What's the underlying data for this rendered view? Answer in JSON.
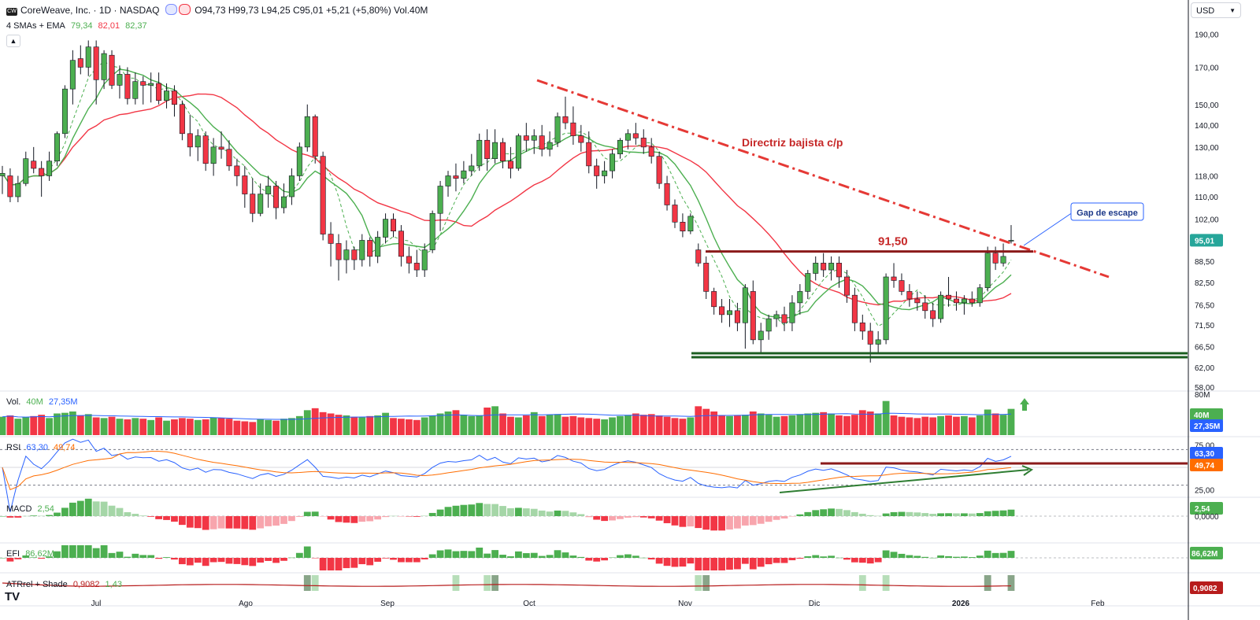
{
  "header": {
    "symbol": "CoreWeave, Inc. · 1D · NASDAQ",
    "logo_text": "CW",
    "ohlc": "O94,73 H99,73 L94,25 C95,01 +5,21 (+5,80%) Vol.40M",
    "ma_legend_label": "4 SMAs + EMA",
    "ma_values": [
      "79,34",
      "82,01",
      "82,37"
    ],
    "collapse_icon": "chevron-up-icon",
    "colors": {
      "up": "#26a69a",
      "green": "#4caf50",
      "red": "#f23645"
    }
  },
  "currency": {
    "label": "USD",
    "icon": "chevron-down-icon"
  },
  "annotations": {
    "trendline_label": "Directriz bajista c/p",
    "resistance_label": "91,50",
    "gap_label": "Gap de escape"
  },
  "volume_legend": {
    "name": "Vol.",
    "v1": "40M",
    "v2": "27,35M"
  },
  "rsi_legend": {
    "name": "RSI",
    "v1": "63,30",
    "v2": "49,74"
  },
  "macd_legend": {
    "name": "MACD",
    "v1": "2,54"
  },
  "efi_legend": {
    "name": "EFI",
    "v1": "86,62M"
  },
  "atr_legend": {
    "name": "ATRrel + Shade",
    "v1": "0,9082",
    "v2": "1,43"
  },
  "chart_data": {
    "type": "candlestick",
    "title": "CoreWeave, Inc. · 1D · NASDAQ",
    "x_tick_labels": [
      "Jul",
      "Ago",
      "Sep",
      "Oct",
      "Nov",
      "Dic",
      "2026",
      "Feb"
    ],
    "y_tick_labels": [
      "190,00",
      "170,00",
      "150,00",
      "140,00",
      "130,00",
      "118,00",
      "110,00",
      "102,00",
      "88,50",
      "82,50",
      "76,50",
      "71,50",
      "66,50",
      "62,00",
      "58,00"
    ],
    "ylim": [
      58,
      200
    ],
    "y_scale": "log",
    "price_badges": [
      {
        "value": "95,01",
        "color": "#26a69a"
      }
    ],
    "candles_ohlc": [
      [
        118,
        122,
        111,
        119
      ],
      [
        118,
        121,
        108,
        110
      ],
      [
        110,
        118,
        108,
        115
      ],
      [
        115,
        128,
        114,
        125
      ],
      [
        124,
        130,
        119,
        121
      ],
      [
        121,
        124,
        110,
        118
      ],
      [
        118,
        128,
        116,
        124
      ],
      [
        124,
        137,
        122,
        136
      ],
      [
        136,
        160,
        134,
        158
      ],
      [
        158,
        180,
        150,
        174
      ],
      [
        175,
        183,
        166,
        170
      ],
      [
        170,
        186,
        165,
        182
      ],
      [
        182,
        186,
        150,
        163
      ],
      [
        163,
        180,
        158,
        178
      ],
      [
        177,
        180,
        158,
        160
      ],
      [
        160,
        171,
        153,
        166
      ],
      [
        166,
        170,
        150,
        153
      ],
      [
        153,
        167,
        150,
        162
      ],
      [
        162,
        165,
        150,
        160
      ],
      [
        160,
        167,
        151,
        161
      ],
      [
        161,
        167,
        150,
        152
      ],
      [
        152,
        161,
        148,
        157
      ],
      [
        157,
        160,
        144,
        150
      ],
      [
        150,
        152,
        133,
        136
      ],
      [
        136,
        145,
        126,
        130
      ],
      [
        130,
        138,
        124,
        135
      ],
      [
        135,
        137,
        120,
        123
      ],
      [
        123,
        134,
        118,
        130
      ],
      [
        130,
        137,
        125,
        129
      ],
      [
        129,
        133,
        120,
        122
      ],
      [
        122,
        125,
        114,
        118
      ],
      [
        118,
        122,
        106,
        111
      ],
      [
        111,
        117,
        101,
        104
      ],
      [
        104,
        115,
        103,
        111
      ],
      [
        111,
        118,
        106,
        114
      ],
      [
        114,
        116,
        102,
        106
      ],
      [
        106,
        115,
        104,
        110
      ],
      [
        110,
        121,
        107,
        118
      ],
      [
        118,
        132,
        116,
        130
      ],
      [
        130,
        150,
        128,
        144
      ],
      [
        144,
        145,
        123,
        126
      ],
      [
        126,
        128,
        95,
        97
      ],
      [
        97,
        101,
        87,
        94
      ],
      [
        94,
        97,
        83,
        89
      ],
      [
        89,
        95,
        85,
        92
      ],
      [
        92,
        93,
        86,
        89
      ],
      [
        89,
        97,
        87,
        95
      ],
      [
        95,
        96,
        87,
        90
      ],
      [
        90,
        98,
        88,
        96
      ],
      [
        96,
        104,
        94,
        102
      ],
      [
        102,
        104,
        96,
        98
      ],
      [
        98,
        100,
        87,
        90
      ],
      [
        90,
        93,
        85,
        88
      ],
      [
        88,
        92,
        84,
        86
      ],
      [
        86,
        94,
        84,
        92
      ],
      [
        92,
        105,
        91,
        104
      ],
      [
        104,
        116,
        98,
        114
      ],
      [
        114,
        120,
        110,
        118
      ],
      [
        118,
        123,
        112,
        117
      ],
      [
        117,
        124,
        115,
        120
      ],
      [
        120,
        127,
        118,
        122
      ],
      [
        122,
        136,
        120,
        133
      ],
      [
        133,
        138,
        120,
        125
      ],
      [
        125,
        138,
        123,
        132
      ],
      [
        132,
        134,
        121,
        124
      ],
      [
        124,
        130,
        117,
        121
      ],
      [
        121,
        136,
        120,
        135
      ],
      [
        135,
        141,
        128,
        133
      ],
      [
        133,
        138,
        127,
        135
      ],
      [
        135,
        140,
        126,
        129
      ],
      [
        129,
        137,
        126,
        132
      ],
      [
        132,
        146,
        130,
        144
      ],
      [
        144,
        154,
        138,
        141
      ],
      [
        141,
        149,
        131,
        135
      ],
      [
        135,
        140,
        128,
        132
      ],
      [
        132,
        137,
        119,
        122
      ],
      [
        122,
        125,
        113,
        118
      ],
      [
        118,
        124,
        115,
        120
      ],
      [
        120,
        129,
        117,
        127
      ],
      [
        127,
        134,
        125,
        133
      ],
      [
        133,
        138,
        129,
        136
      ],
      [
        136,
        141,
        131,
        134
      ],
      [
        134,
        138,
        127,
        130
      ],
      [
        130,
        134,
        123,
        126
      ],
      [
        126,
        128,
        113,
        115
      ],
      [
        115,
        118,
        105,
        107
      ],
      [
        107,
        109,
        99,
        101
      ],
      [
        101,
        104,
        96,
        98
      ],
      [
        98,
        104,
        97,
        103
      ],
      [
        92,
        94,
        87,
        88
      ],
      [
        88,
        90,
        78,
        80
      ],
      [
        80,
        81,
        74,
        76
      ],
      [
        76,
        78,
        72,
        74
      ],
      [
        74,
        78,
        71,
        75
      ],
      [
        75,
        77,
        70,
        72
      ],
      [
        72,
        82,
        66,
        81
      ],
      [
        80,
        83,
        67,
        68
      ],
      [
        68,
        72,
        65,
        70
      ],
      [
        70,
        74,
        68,
        73
      ],
      [
        73,
        75,
        71,
        74
      ],
      [
        74,
        76,
        70,
        72
      ],
      [
        72,
        79,
        70,
        77
      ],
      [
        77,
        82,
        74,
        80
      ],
      [
        80,
        86,
        78,
        85
      ],
      [
        85,
        90,
        83,
        88
      ],
      [
        88,
        91,
        84,
        86
      ],
      [
        86,
        90,
        83,
        88
      ],
      [
        88,
        90,
        81,
        84
      ],
      [
        84,
        86,
        77,
        79
      ],
      [
        79,
        81,
        70,
        72
      ],
      [
        72,
        74,
        68,
        70
      ],
      [
        70,
        72,
        63,
        67
      ],
      [
        67,
        70,
        65,
        68
      ],
      [
        68,
        85,
        67,
        84
      ],
      [
        84,
        88,
        81,
        83
      ],
      [
        83,
        85,
        79,
        80
      ],
      [
        80,
        82,
        76,
        78
      ],
      [
        78,
        80,
        75,
        77
      ],
      [
        77,
        79,
        73,
        75
      ],
      [
        75,
        77,
        71,
        73
      ],
      [
        73,
        80,
        72,
        79
      ],
      [
        79,
        84,
        76,
        78
      ],
      [
        78,
        80,
        75,
        77
      ],
      [
        77,
        79,
        74,
        78
      ],
      [
        78,
        80,
        76,
        77
      ],
      [
        77,
        82,
        76,
        81
      ],
      [
        81,
        93,
        80,
        91
      ],
      [
        91,
        93,
        86,
        88
      ],
      [
        88,
        94,
        87,
        90
      ],
      [
        95,
        100,
        94,
        95
      ]
    ],
    "volume_values_m": [
      28,
      30,
      25,
      27,
      29,
      31,
      26,
      33,
      34,
      36,
      30,
      32,
      27,
      26,
      28,
      25,
      24,
      26,
      25,
      23,
      27,
      22,
      24,
      26,
      25,
      23,
      24,
      27,
      26,
      25,
      22,
      21,
      20,
      24,
      23,
      22,
      25,
      26,
      29,
      38,
      41,
      35,
      33,
      31,
      30,
      28,
      27,
      29,
      30,
      34,
      26,
      25,
      24,
      23,
      27,
      30,
      33,
      36,
      38,
      31,
      29,
      30,
      42,
      44,
      33,
      28,
      27,
      30,
      35,
      29,
      31,
      32,
      28,
      29,
      27,
      26,
      25,
      24,
      27,
      29,
      30,
      33,
      31,
      32,
      30,
      28,
      26,
      25,
      27,
      44,
      40,
      36,
      30,
      29,
      30,
      31,
      36,
      33,
      31,
      28,
      29,
      30,
      32,
      33,
      34,
      35,
      33,
      30,
      29,
      31,
      38,
      36,
      33,
      52,
      30,
      28,
      27,
      26,
      28,
      27,
      29,
      30,
      28,
      29,
      27,
      30,
      39,
      33,
      31,
      40
    ]
  }
}
